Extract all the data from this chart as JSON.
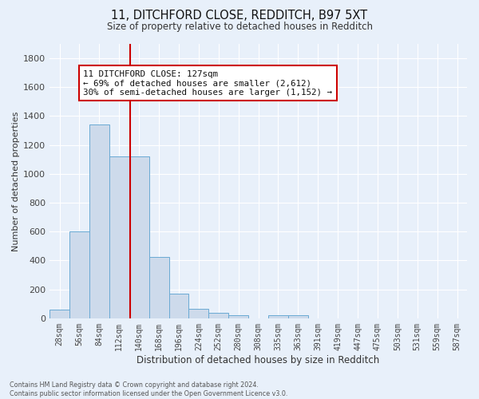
{
  "title": "11, DITCHFORD CLOSE, REDDITCH, B97 5XT",
  "subtitle": "Size of property relative to detached houses in Redditch",
  "xlabel": "Distribution of detached houses by size in Redditch",
  "ylabel": "Number of detached properties",
  "bin_labels": [
    "28sqm",
    "56sqm",
    "84sqm",
    "112sqm",
    "140sqm",
    "168sqm",
    "196sqm",
    "224sqm",
    "252sqm",
    "280sqm",
    "308sqm",
    "335sqm",
    "363sqm",
    "391sqm",
    "419sqm",
    "447sqm",
    "475sqm",
    "503sqm",
    "531sqm",
    "559sqm",
    "587sqm"
  ],
  "bin_values": [
    60,
    600,
    1340,
    1120,
    1120,
    425,
    170,
    65,
    35,
    20,
    0,
    20,
    20,
    0,
    0,
    0,
    0,
    0,
    0,
    0,
    0
  ],
  "bar_color": "#cddaeb",
  "bar_edge_color": "#6aaad4",
  "vline_color": "#cc0000",
  "annotation_text": "11 DITCHFORD CLOSE: 127sqm\n← 69% of detached houses are smaller (2,612)\n30% of semi-detached houses are larger (1,152) →",
  "annotation_box_color": "white",
  "annotation_box_edge": "#cc0000",
  "background_color": "#e8f0fa",
  "grid_color": "#ffffff",
  "footnote": "Contains HM Land Registry data © Crown copyright and database right 2024.\nContains public sector information licensed under the Open Government Licence v3.0.",
  "ylim": [
    0,
    1900
  ],
  "yticks": [
    0,
    200,
    400,
    600,
    800,
    1000,
    1200,
    1400,
    1600,
    1800
  ]
}
